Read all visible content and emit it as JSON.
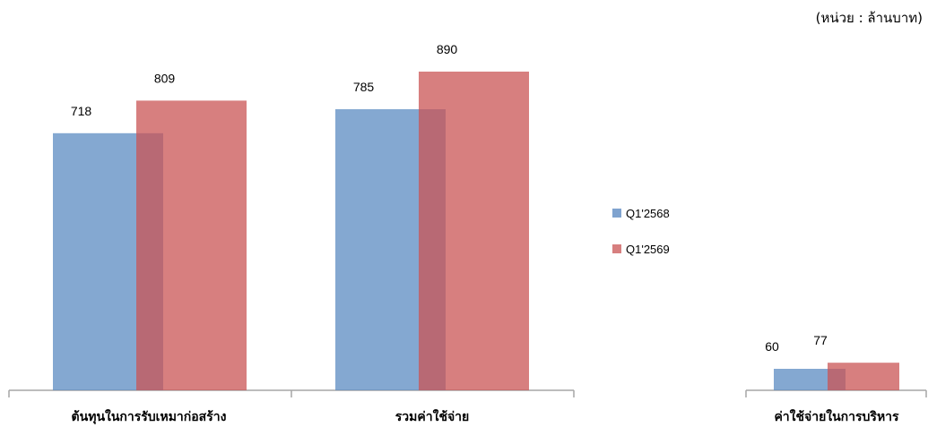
{
  "unit_note": "(หน่วย : ล้านบาท)",
  "legend": [
    {
      "label": "Q1'2568",
      "color": "#5b8bc2"
    },
    {
      "label": "Q1'2569",
      "color": "#c95454"
    }
  ],
  "chart_data": [
    {
      "type": "bar",
      "title": "",
      "xlabel": "",
      "ylabel": "",
      "categories": [
        "ต้นทุนในการรับเหมาก่อสร้าง",
        "รวมค่าใช้จ่าย"
      ],
      "series": [
        {
          "name": "Q1'2568",
          "values": [
            718,
            785
          ],
          "color": "#5b8bc2"
        },
        {
          "name": "Q1'2569",
          "values": [
            809,
            890
          ],
          "color": "#c95454"
        }
      ],
      "ylim": [
        0,
        1000
      ],
      "grid": false,
      "legend_position": "right"
    },
    {
      "type": "bar",
      "title": "",
      "xlabel": "",
      "ylabel": "",
      "categories": [
        "ค่าใช้จ่ายในการบริหาร"
      ],
      "series": [
        {
          "name": "Q1'2568",
          "values": [
            60
          ],
          "color": "#5b8bc2"
        },
        {
          "name": "Q1'2569",
          "values": [
            77
          ],
          "color": "#c95454"
        }
      ],
      "ylim": [
        0,
        1000
      ],
      "grid": false,
      "legend_position": "right"
    }
  ]
}
